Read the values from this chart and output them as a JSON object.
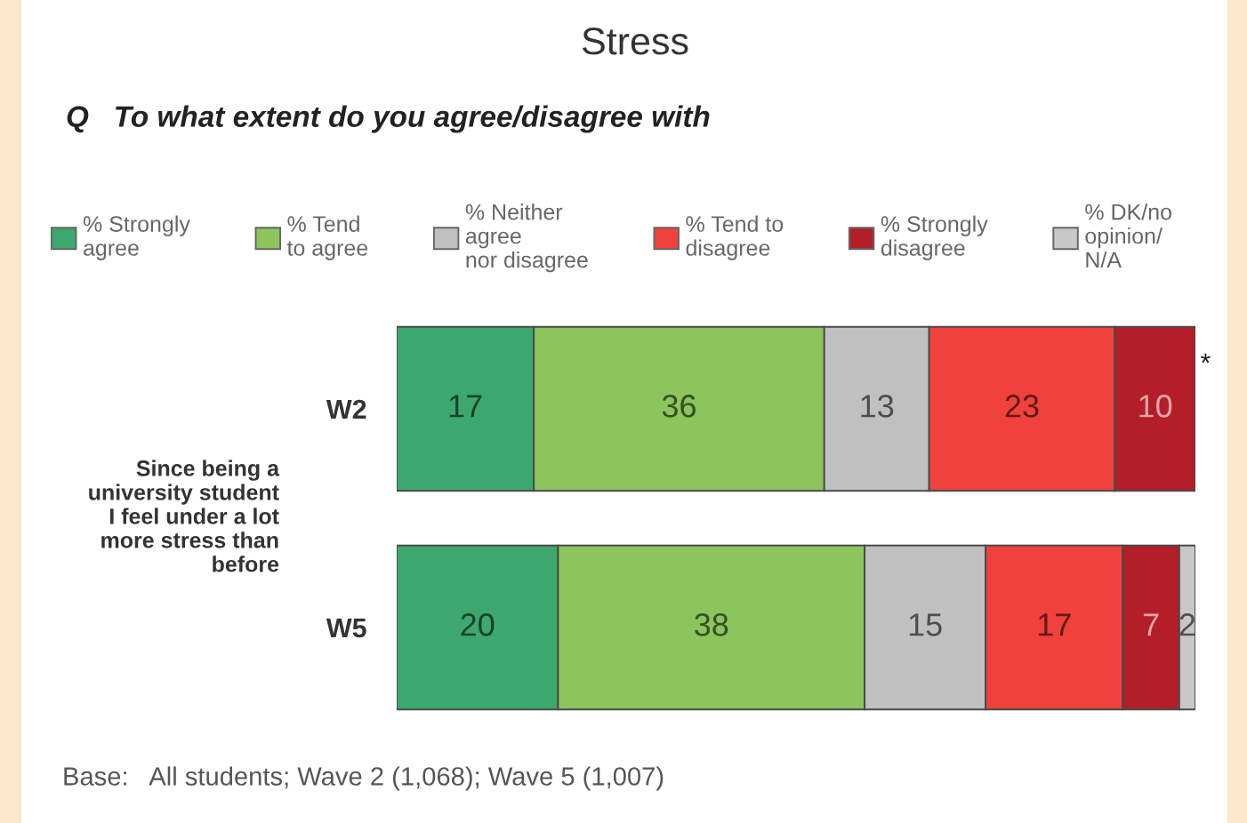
{
  "chart_data": {
    "type": "bar",
    "orientation": "horizontal",
    "stacked": true,
    "title": "Stress",
    "subtitle": "Q   To what extent do you agree/disagree with",
    "ylabel": "Since being a\nuniversity student\nI feel under a lot\nmore stress than\nbefore",
    "categories": [
      "W2",
      "W5"
    ],
    "series": [
      {
        "name": "% Strongly\nagree",
        "color": "#3da86e",
        "values": [
          17,
          20
        ]
      },
      {
        "name": "% Tend\nto agree",
        "color": "#8bc55c",
        "values": [
          36,
          38
        ]
      },
      {
        "name": "% Neither\nagree\nnor disagree",
        "color": "#c0c0c0",
        "values": [
          13,
          15
        ]
      },
      {
        "name": "% Tend to\ndisagree",
        "color": "#f0413d",
        "values": [
          23,
          17
        ]
      },
      {
        "name": "% Strongly\ndisagree",
        "color": "#b31e29",
        "values": [
          10,
          7
        ]
      },
      {
        "name": "% DK/no\nopinion/\nN/A",
        "color": "#c8c8c8",
        "values": [
          null,
          2
        ],
        "value_labels": [
          "*",
          "2"
        ]
      }
    ],
    "data_labels": true,
    "legend": "top",
    "annotations": [
      "Base:   All students; Wave 2 (1,068); Wave 5 (1,007)"
    ]
  }
}
